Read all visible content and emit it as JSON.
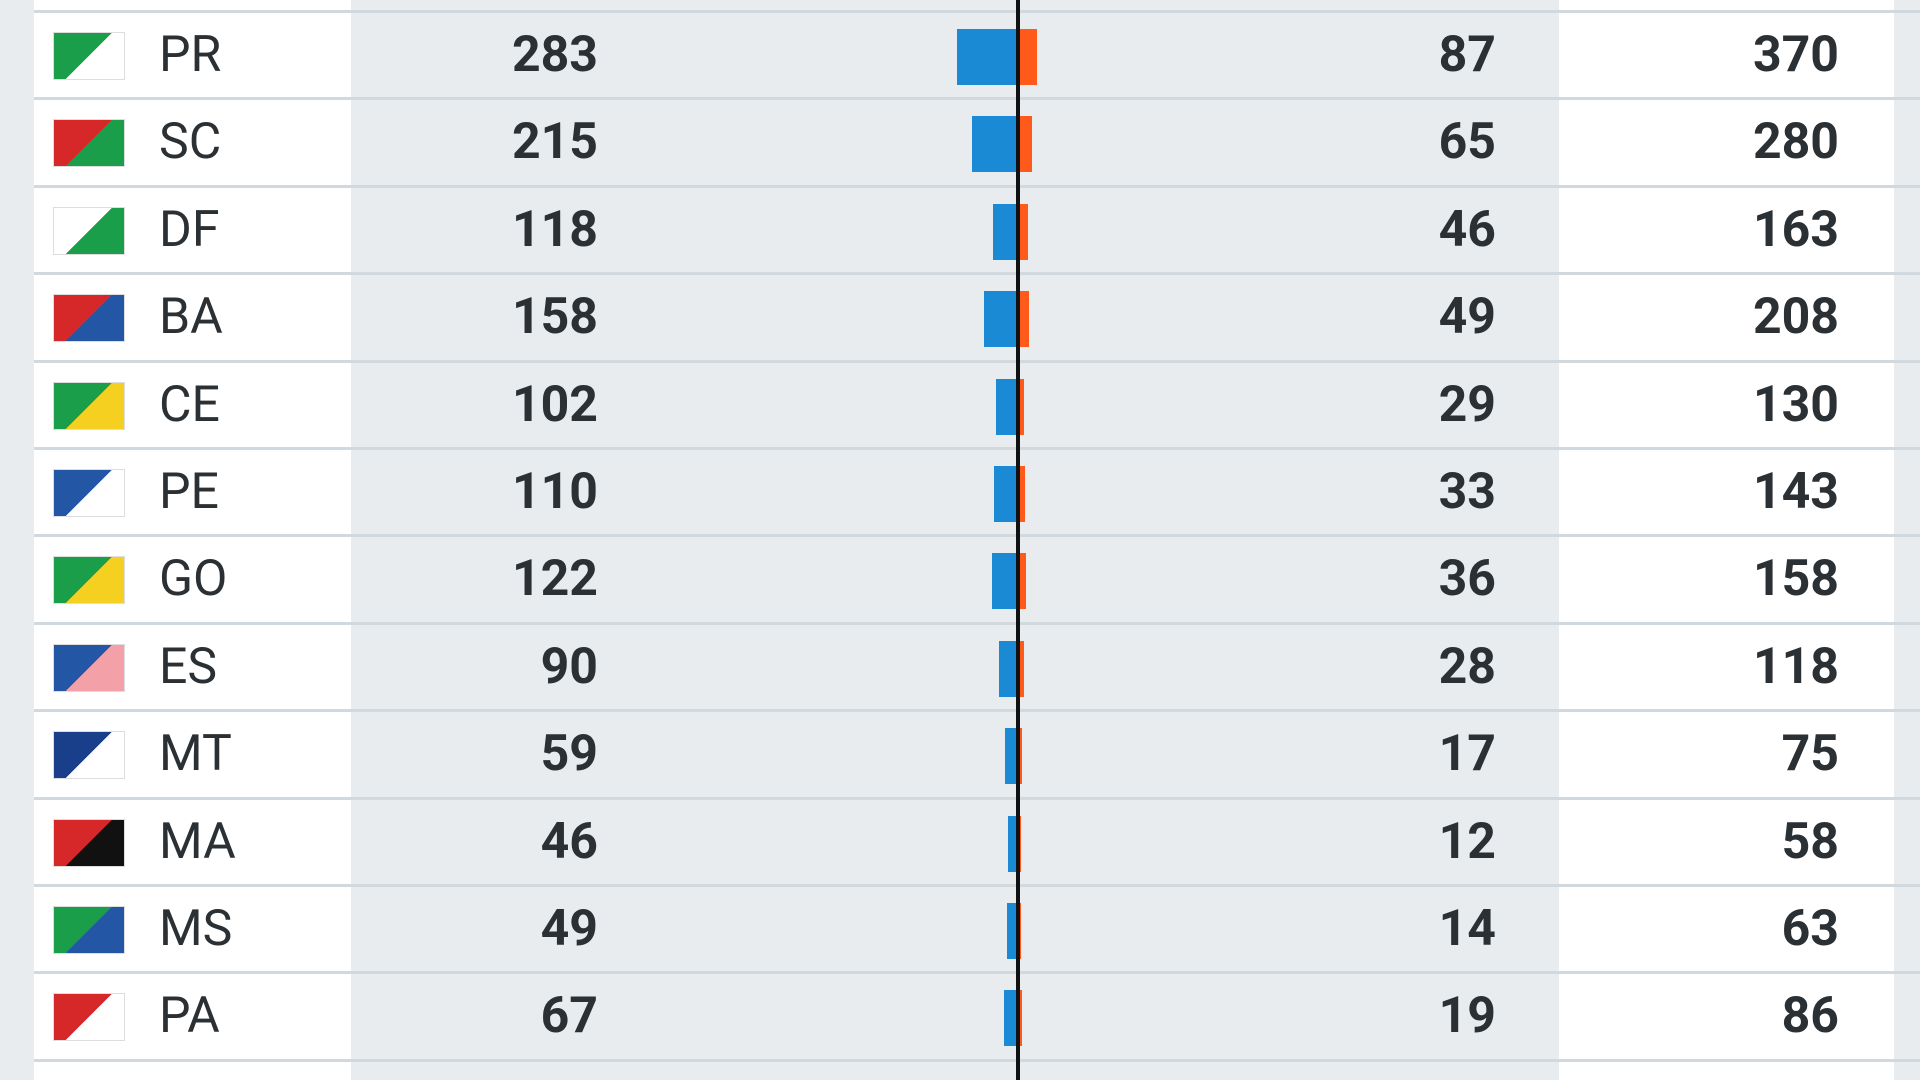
{
  "table": {
    "rows": [
      {
        "state": "PR",
        "left": 283,
        "right": 87,
        "total": 370
      },
      {
        "state": "SC",
        "left": 215,
        "right": 65,
        "total": 280
      },
      {
        "state": "DF",
        "left": 118,
        "right": 46,
        "total": 163
      },
      {
        "state": "BA",
        "left": 158,
        "right": 49,
        "total": 208
      },
      {
        "state": "CE",
        "left": 102,
        "right": 29,
        "total": 130
      },
      {
        "state": "PE",
        "left": 110,
        "right": 33,
        "total": 143
      },
      {
        "state": "GO",
        "left": 122,
        "right": 36,
        "total": 158
      },
      {
        "state": "ES",
        "left": 90,
        "right": 28,
        "total": 118
      },
      {
        "state": "MT",
        "left": 59,
        "right": 17,
        "total": 75
      },
      {
        "state": "MA",
        "left": 46,
        "right": 12,
        "total": 58
      },
      {
        "state": "MS",
        "left": 49,
        "right": 14,
        "total": 63
      },
      {
        "state": "PA",
        "left": 67,
        "right": 19,
        "total": 86
      }
    ]
  }
}
